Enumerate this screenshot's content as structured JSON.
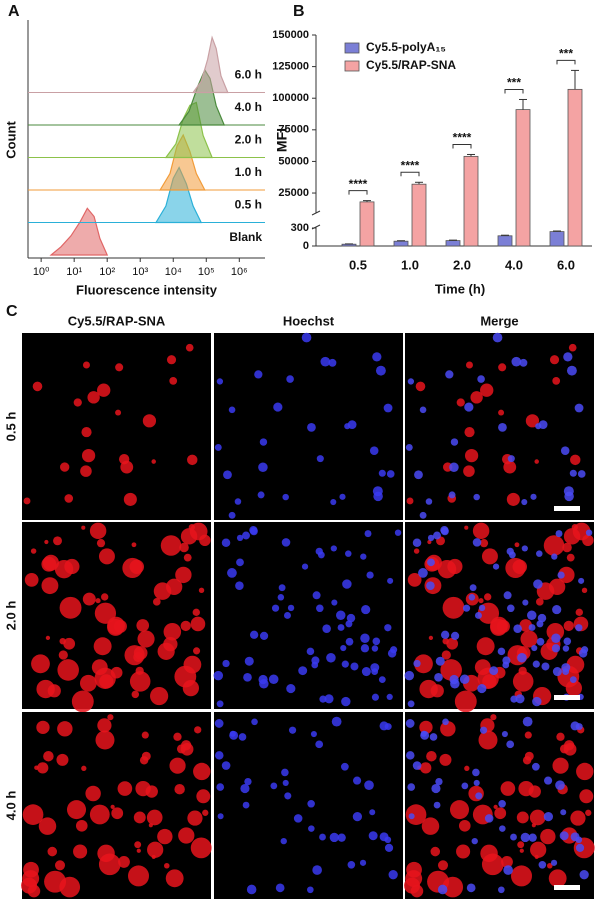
{
  "panel_labels": [
    "A",
    "B",
    "C"
  ],
  "chart_data": [
    {
      "type": "area",
      "xlabel": "Fluorescence intensity",
      "ylabel": "Count",
      "log_x": true,
      "xlim": [
        0.4,
        6000000
      ],
      "ylim": [
        0,
        100
      ],
      "xticks": [
        {
          "value": 1,
          "label": "10⁰"
        },
        {
          "value": 10,
          "label": "10¹"
        },
        {
          "value": 100,
          "label": "10²"
        },
        {
          "value": 1000,
          "label": "10³"
        },
        {
          "value": 10000,
          "label": "10⁴"
        },
        {
          "value": 100000,
          "label": "10⁵"
        },
        {
          "value": 1000000,
          "label": "10⁶"
        }
      ],
      "series": [
        {
          "name": "Blank",
          "color": "#e06666",
          "x": [
            2,
            4,
            8,
            15,
            25,
            40,
            60,
            100
          ],
          "values": [
            0,
            15,
            35,
            60,
            85,
            70,
            30,
            0
          ]
        },
        {
          "name": "0.5 h",
          "color": "#2ab0d8",
          "x": [
            3000,
            6000,
            10000,
            15000,
            25000,
            40000,
            70000
          ],
          "values": [
            0,
            30,
            80,
            100,
            70,
            30,
            0
          ]
        },
        {
          "name": "1.0 h",
          "color": "#f29b38",
          "x": [
            4000,
            8000,
            13000,
            20000,
            32000,
            50000,
            90000
          ],
          "values": [
            0,
            30,
            80,
            100,
            70,
            30,
            0
          ]
        },
        {
          "name": "2.0 h",
          "color": "#8cc24a",
          "x": [
            6000,
            12000,
            20000,
            32000,
            50000,
            80000,
            150000
          ],
          "values": [
            0,
            25,
            70,
            95,
            100,
            40,
            0
          ]
        },
        {
          "name": "4.0 h",
          "color": "#4a8a3c",
          "x": [
            15000,
            30000,
            55000,
            90000,
            130000,
            200000,
            350000
          ],
          "values": [
            0,
            25,
            70,
            100,
            85,
            35,
            0
          ]
        },
        {
          "name": "6.0 h",
          "color": "#c9a0a4",
          "x": [
            40000,
            70000,
            110000,
            150000,
            200000,
            280000,
            450000
          ],
          "values": [
            0,
            20,
            60,
            100,
            80,
            30,
            0
          ]
        }
      ]
    },
    {
      "type": "bar",
      "xlabel": "Time (h)",
      "ylabel": "MFI",
      "categories": [
        "0.5",
        "1.0",
        "2.0",
        "4.0",
        "6.0"
      ],
      "ylim": [
        0,
        150000
      ],
      "ybreak": [
        300,
        10000
      ],
      "yticks": [
        0,
        300,
        25000,
        50000,
        75000,
        100000,
        125000,
        150000
      ],
      "series": [
        {
          "name": "Cy5.5-polyA₁₅",
          "color": "#7b7fd6",
          "values": [
            30,
            80,
            90,
            170,
            240
          ],
          "errors": [
            5,
            8,
            8,
            10,
            10
          ]
        },
        {
          "name": "Cy5.5/RAP-SNA",
          "color": "#f4a3a3",
          "values": [
            18000,
            32000,
            54000,
            91000,
            107000
          ],
          "errors": [
            1000,
            1500,
            1500,
            8000,
            15000
          ]
        }
      ],
      "annotations": [
        "****",
        "****",
        "****",
        "***",
        "***"
      ]
    }
  ],
  "microscopy": {
    "columns": [
      "Cy5.5/RAP-SNA",
      "Hoechst",
      "Merge"
    ],
    "rows": [
      "0.5 h",
      "2.0 h",
      "4.0 h"
    ]
  }
}
